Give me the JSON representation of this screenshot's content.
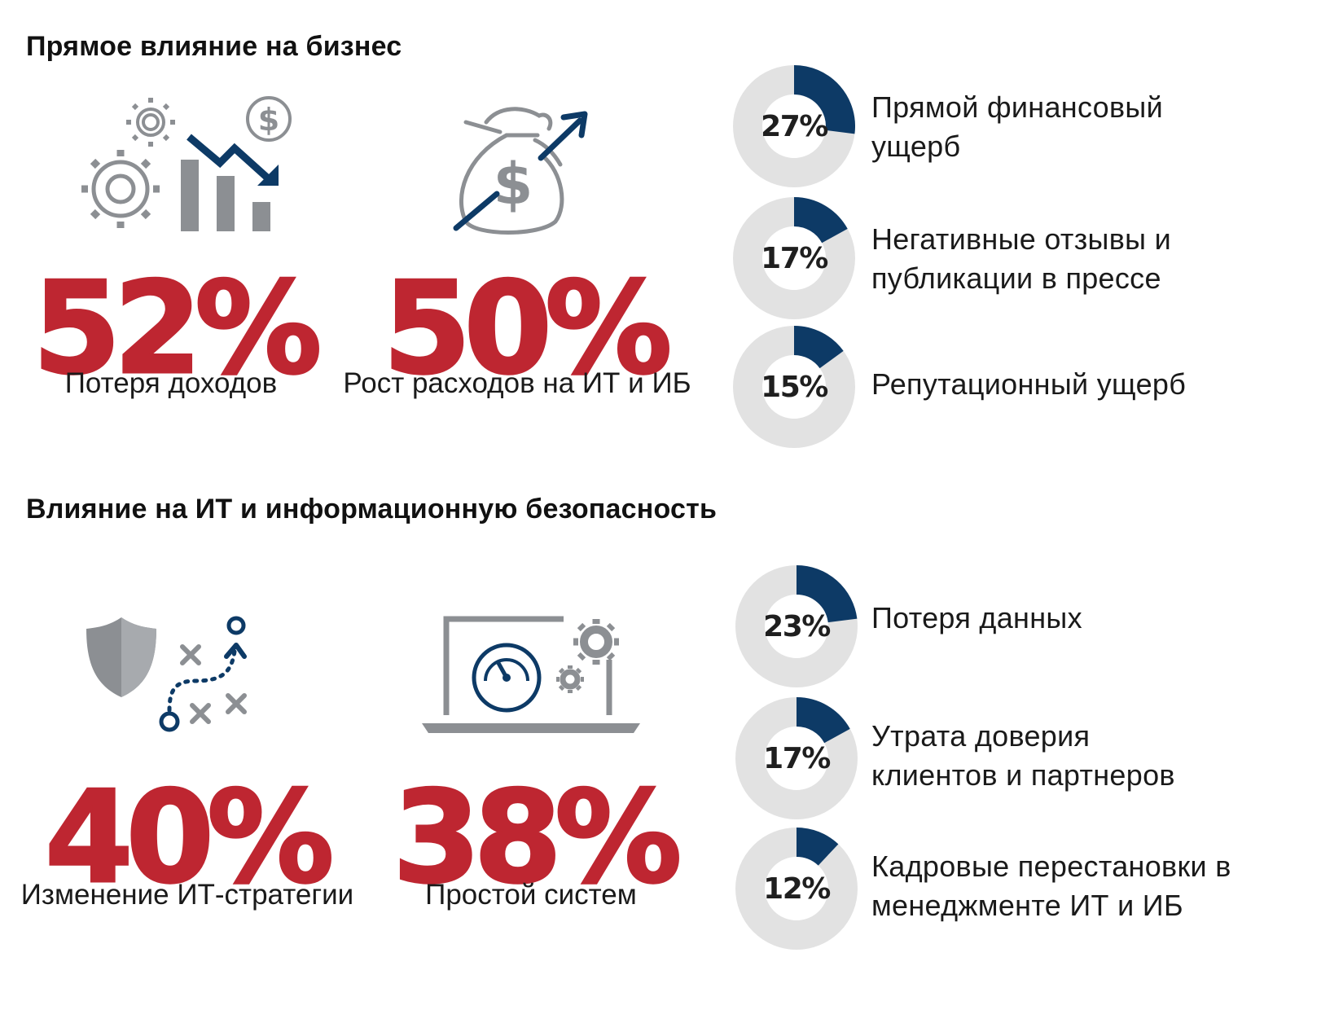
{
  "colors": {
    "red": "#be2631",
    "navy": "#0d3a66",
    "gray": "#8c8f93",
    "light_gray": "#e2e2e2"
  },
  "sections": [
    {
      "title": "Прямое влияние на бизнес"
    },
    {
      "title": "Влияние на ИТ и информационную безопасность"
    }
  ],
  "chart_data": [
    {
      "type": "table",
      "title": "Прямое влияние на бизнес",
      "highlights": [
        {
          "value": 52,
          "display": "52%",
          "label": "Потеря доходов",
          "icon": "revenue-decline-icon"
        },
        {
          "value": 50,
          "display": "50%",
          "label": "Рост расходов на ИТ и ИБ",
          "icon": "money-bag-growth-icon"
        }
      ]
    },
    {
      "type": "pie",
      "subtype": "donut",
      "series": [
        {
          "value": 27,
          "display": "27%",
          "label": "Прямой финансовый ущерб"
        },
        {
          "value": 17,
          "display": "17%",
          "label": "Негативные отзывы и публикации в прессе"
        },
        {
          "value": 15,
          "display": "15%",
          "label": "Репутационный ущерб"
        }
      ]
    },
    {
      "type": "table",
      "title": "Влияние на ИТ и информационную безопасность",
      "highlights": [
        {
          "value": 40,
          "display": "40%",
          "label": "Изменение ИТ-стратегии",
          "icon": "shield-strategy-icon"
        },
        {
          "value": 38,
          "display": "38%",
          "label": "Простой систем",
          "icon": "laptop-performance-icon"
        }
      ]
    },
    {
      "type": "pie",
      "subtype": "donut",
      "series": [
        {
          "value": 23,
          "display": "23%",
          "label": "Потеря данных"
        },
        {
          "value": 17,
          "display": "17%",
          "label": "Утрата доверия клиентов и партнеров"
        },
        {
          "value": 12,
          "display": "12%",
          "label": "Кадровые перестановки в менеджменте ИТ и ИБ"
        }
      ]
    }
  ]
}
